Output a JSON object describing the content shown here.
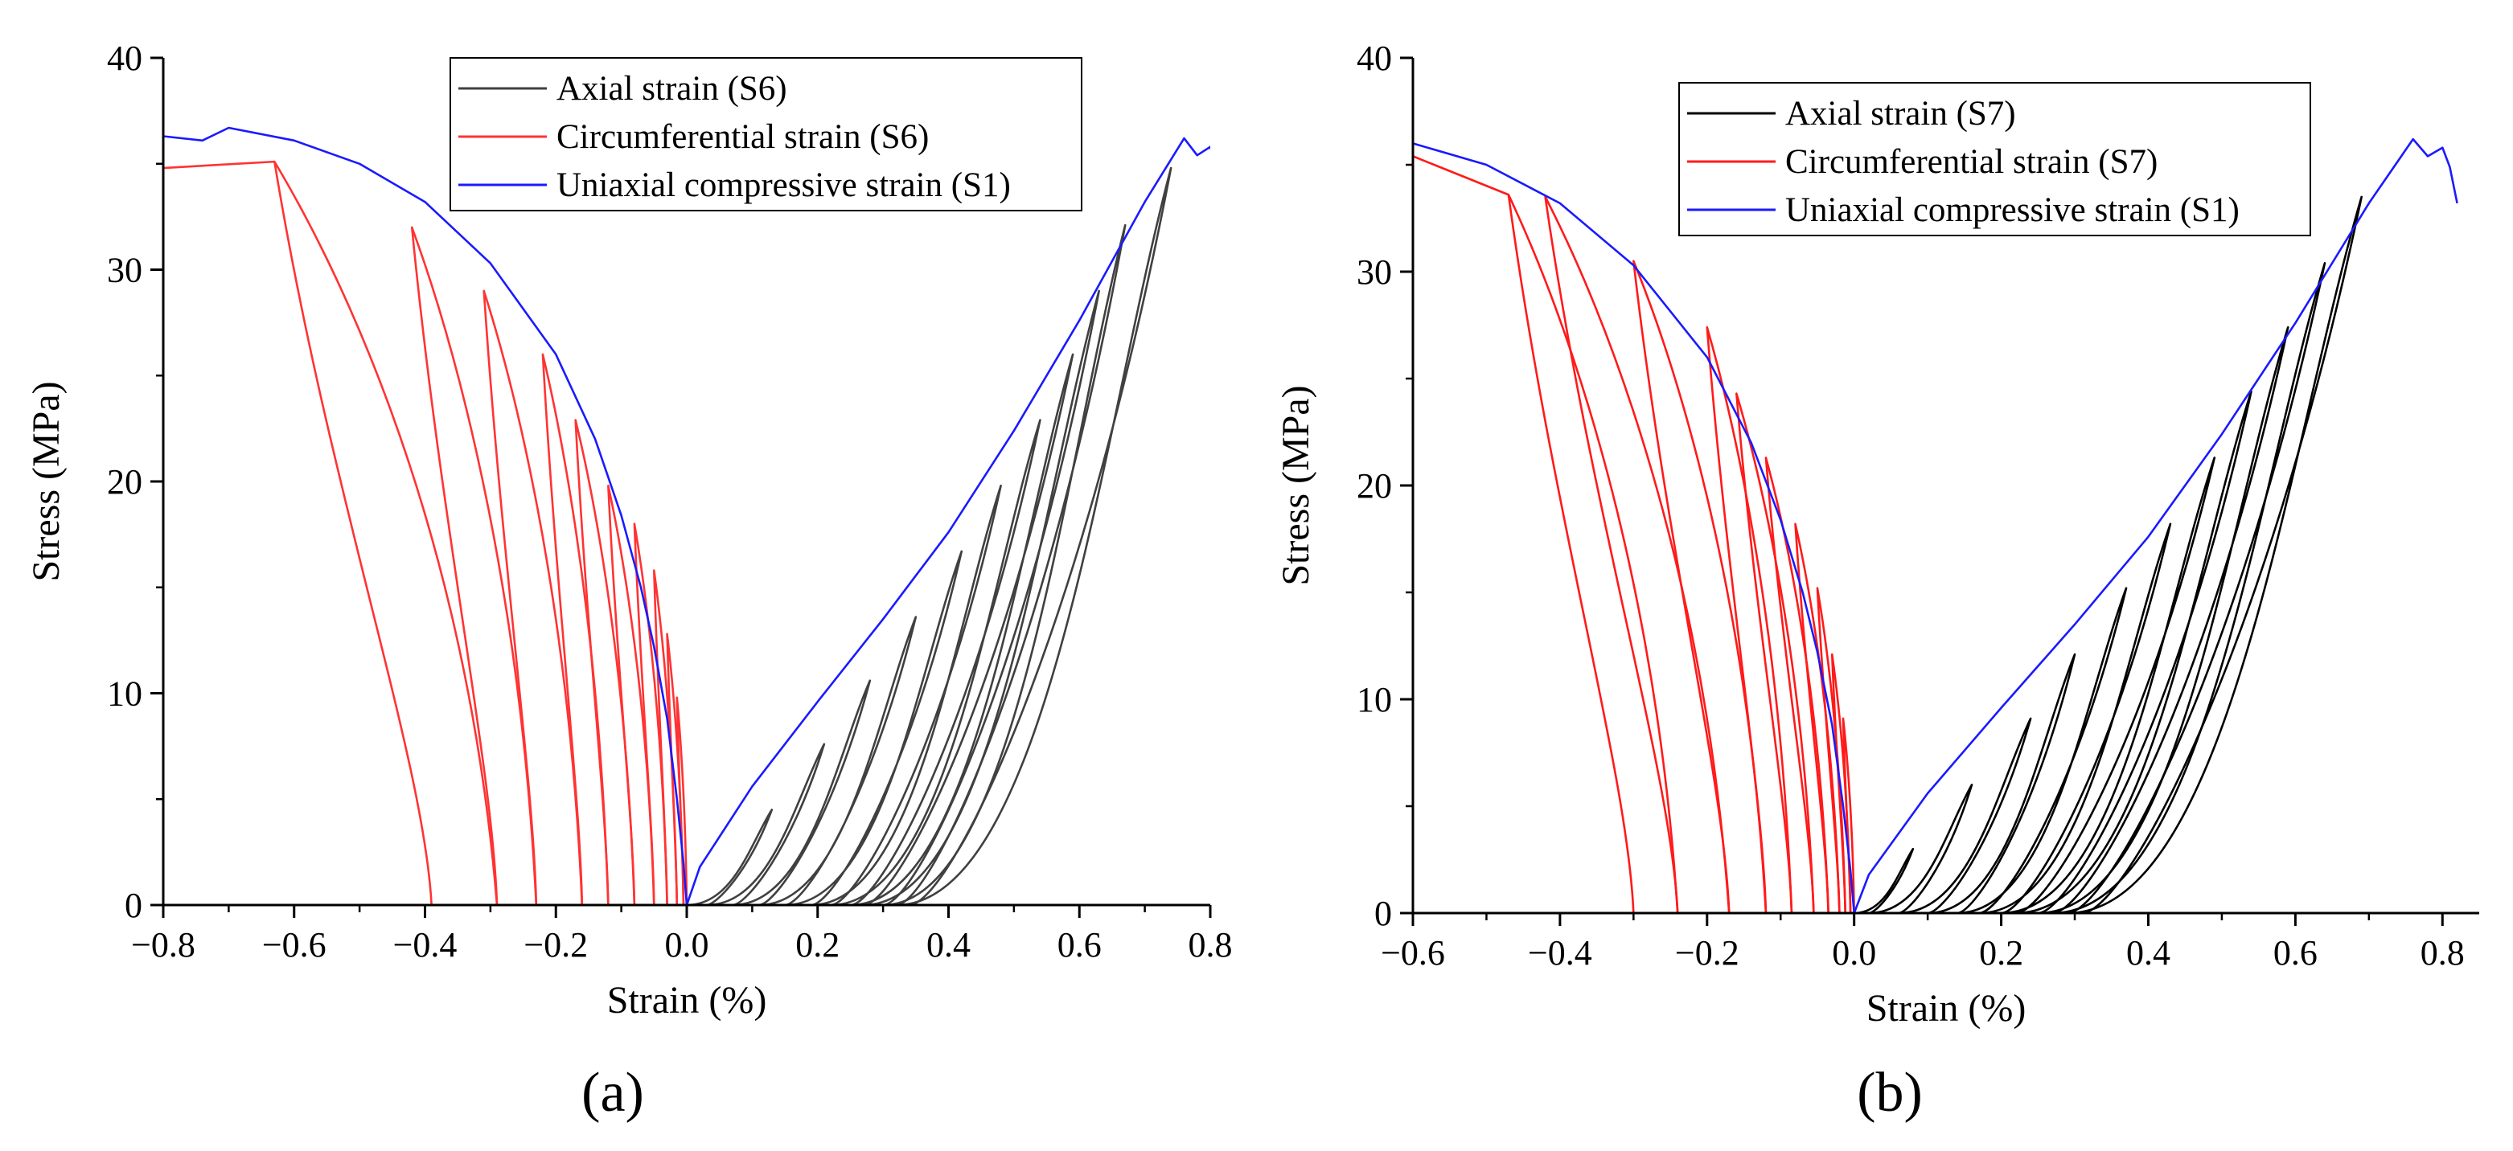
{
  "figure": {
    "panels": [
      "(a)",
      "(b)"
    ]
  },
  "chart_data": [
    {
      "panel": "(a)",
      "type": "line",
      "xlabel": "Strain (%)",
      "ylabel": "Stress (MPa)",
      "xlim": [
        -0.8,
        0.8
      ],
      "ylim": [
        0,
        40
      ],
      "xticks": [
        -0.8,
        -0.6,
        -0.4,
        -0.2,
        0.0,
        0.2,
        0.4,
        0.6,
        0.8
      ],
      "xtick_labels": [
        "−0.8",
        "−0.6",
        "−0.4",
        "−0.2",
        "0.0",
        "0.2",
        "0.4",
        "0.6",
        "0.8"
      ],
      "yticks": [
        0,
        10,
        20,
        30,
        40
      ],
      "ytick_labels": [
        "0",
        "10",
        "20",
        "30",
        "40"
      ],
      "legend_position": "top-right",
      "series": [
        {
          "name": "Axial strain (S6)",
          "color": "#404040",
          "kind": "axial-cycles",
          "loops": [
            {
              "peak": 4.5,
              "x_peak": 0.13,
              "x_residual": 0.03
            },
            {
              "peak": 7.6,
              "x_peak": 0.21,
              "x_residual": 0.07
            },
            {
              "peak": 10.6,
              "x_peak": 0.28,
              "x_residual": 0.11
            },
            {
              "peak": 13.6,
              "x_peak": 0.35,
              "x_residual": 0.15
            },
            {
              "peak": 16.7,
              "x_peak": 0.42,
              "x_residual": 0.19
            },
            {
              "peak": 19.8,
              "x_peak": 0.48,
              "x_residual": 0.22
            },
            {
              "peak": 22.9,
              "x_peak": 0.54,
              "x_residual": 0.25
            },
            {
              "peak": 26.0,
              "x_peak": 0.59,
              "x_residual": 0.27
            },
            {
              "peak": 29.0,
              "x_peak": 0.63,
              "x_residual": 0.3
            },
            {
              "peak": 32.1,
              "x_peak": 0.67,
              "x_residual": 0.32
            },
            {
              "peak": 34.8,
              "x_peak": 0.74,
              "x_residual": 0.34
            }
          ]
        },
        {
          "name": "Circumferential strain  (S6)",
          "color": "#ff3333",
          "kind": "circ-cycles",
          "loops": [
            {
              "peak": 9.8,
              "x_peak": -0.015,
              "x_residual": -0.005
            },
            {
              "peak": 12.8,
              "x_peak": -0.03,
              "x_residual": -0.015
            },
            {
              "peak": 15.8,
              "x_peak": -0.05,
              "x_residual": -0.03
            },
            {
              "peak": 18.0,
              "x_peak": -0.08,
              "x_residual": -0.05
            },
            {
              "peak": 19.8,
              "x_peak": -0.12,
              "x_residual": -0.08
            },
            {
              "peak": 22.9,
              "x_peak": -0.17,
              "x_residual": -0.12
            },
            {
              "peak": 26.0,
              "x_peak": -0.22,
              "x_residual": -0.16
            },
            {
              "peak": 29.0,
              "x_peak": -0.31,
              "x_residual": -0.23
            },
            {
              "peak": 32.0,
              "x_peak": -0.42,
              "x_residual": -0.29
            },
            {
              "peak": 35.1,
              "x_peak": -0.63,
              "x_residual": -0.39
            }
          ],
          "final": [
            [
              -0.63,
              35.1
            ],
            [
              -0.8,
              34.8
            ]
          ]
        },
        {
          "name": "Uniaxial compressive strain (S1)",
          "color": "#1a1aff",
          "kind": "envelope",
          "points": [
            [
              -0.8,
              36.3
            ],
            [
              -0.74,
              36.1
            ],
            [
              -0.7,
              36.7
            ],
            [
              -0.6,
              36.1
            ],
            [
              -0.5,
              35.0
            ],
            [
              -0.4,
              33.2
            ],
            [
              -0.3,
              30.3
            ],
            [
              -0.2,
              26.0
            ],
            [
              -0.14,
              22.0
            ],
            [
              -0.1,
              18.4
            ],
            [
              -0.07,
              15.0
            ],
            [
              -0.05,
              12.2
            ],
            [
              -0.03,
              8.8
            ],
            [
              -0.015,
              5.0
            ],
            [
              -0.005,
              2.0
            ],
            [
              0.0,
              0.0
            ],
            [
              0.02,
              1.8
            ],
            [
              0.1,
              5.6
            ],
            [
              0.2,
              9.6
            ],
            [
              0.3,
              13.5
            ],
            [
              0.4,
              17.6
            ],
            [
              0.5,
              22.4
            ],
            [
              0.6,
              27.6
            ],
            [
              0.7,
              33.2
            ],
            [
              0.76,
              36.2
            ],
            [
              0.78,
              35.4
            ],
            [
              0.8,
              35.8
            ],
            [
              0.81,
              34.9
            ],
            [
              0.82,
              33.2
            ]
          ]
        }
      ]
    },
    {
      "panel": "(b)",
      "type": "line",
      "xlabel": "Strain (%)",
      "ylabel": "Stress (MPa)",
      "xlim": [
        -0.6,
        0.85
      ],
      "ylim": [
        0,
        40
      ],
      "xticks": [
        -0.6,
        -0.4,
        -0.2,
        0.0,
        0.2,
        0.4,
        0.6,
        0.8
      ],
      "xtick_labels": [
        "−0.6",
        "−0.4",
        "−0.2",
        "0.0",
        "0.2",
        "0.4",
        "0.6",
        "0.8"
      ],
      "yticks": [
        0,
        10,
        20,
        30,
        40
      ],
      "ytick_labels": [
        "0",
        "10",
        "20",
        "30",
        "40"
      ],
      "legend_position": "top-right",
      "series": [
        {
          "name": "Axial strain (S7)",
          "color": "#000000",
          "kind": "axial-cycles",
          "loops": [
            {
              "peak": 3.0,
              "x_peak": 0.08,
              "x_residual": 0.02
            },
            {
              "peak": 6.0,
              "x_peak": 0.16,
              "x_residual": 0.06
            },
            {
              "peak": 9.1,
              "x_peak": 0.24,
              "x_residual": 0.1
            },
            {
              "peak": 12.1,
              "x_peak": 0.3,
              "x_residual": 0.14
            },
            {
              "peak": 15.2,
              "x_peak": 0.37,
              "x_residual": 0.17
            },
            {
              "peak": 18.2,
              "x_peak": 0.43,
              "x_residual": 0.2
            },
            {
              "peak": 21.3,
              "x_peak": 0.49,
              "x_residual": 0.22
            },
            {
              "peak": 24.4,
              "x_peak": 0.54,
              "x_residual": 0.25
            },
            {
              "peak": 27.4,
              "x_peak": 0.59,
              "x_residual": 0.27
            },
            {
              "peak": 30.4,
              "x_peak": 0.64,
              "x_residual": 0.29
            },
            {
              "peak": 33.5,
              "x_peak": 0.69,
              "x_residual": 0.31
            }
          ]
        },
        {
          "name": "Circumferential strain  (S7)",
          "color": "#ff1a1a",
          "kind": "circ-cycles",
          "loops": [
            {
              "peak": 9.1,
              "x_peak": -0.015,
              "x_residual": -0.005
            },
            {
              "peak": 12.1,
              "x_peak": -0.03,
              "x_residual": -0.012
            },
            {
              "peak": 15.2,
              "x_peak": -0.05,
              "x_residual": -0.02
            },
            {
              "peak": 18.2,
              "x_peak": -0.08,
              "x_residual": -0.035
            },
            {
              "peak": 21.3,
              "x_peak": -0.12,
              "x_residual": -0.055
            },
            {
              "peak": 24.3,
              "x_peak": -0.16,
              "x_residual": -0.085
            },
            {
              "peak": 27.4,
              "x_peak": -0.2,
              "x_residual": -0.12
            },
            {
              "peak": 30.5,
              "x_peak": -0.3,
              "x_residual": -0.17
            },
            {
              "peak": 33.5,
              "x_peak": -0.42,
              "x_residual": -0.24
            },
            {
              "peak": 33.6,
              "x_peak": -0.47,
              "x_residual": -0.3
            }
          ],
          "final": [
            [
              -0.47,
              33.6
            ],
            [
              -0.6,
              35.4
            ]
          ]
        },
        {
          "name": "Uniaxial compressive strain (S1)",
          "color": "#1a1aff",
          "kind": "envelope",
          "points": [
            [
              -0.6,
              36.0
            ],
            [
              -0.5,
              35.0
            ],
            [
              -0.4,
              33.2
            ],
            [
              -0.3,
              30.3
            ],
            [
              -0.2,
              26.0
            ],
            [
              -0.14,
              22.0
            ],
            [
              -0.1,
              18.4
            ],
            [
              -0.07,
              15.0
            ],
            [
              -0.05,
              12.2
            ],
            [
              -0.03,
              8.8
            ],
            [
              -0.015,
              5.0
            ],
            [
              -0.005,
              2.0
            ],
            [
              0.0,
              0.0
            ],
            [
              0.02,
              1.8
            ],
            [
              0.1,
              5.6
            ],
            [
              0.2,
              9.6
            ],
            [
              0.3,
              13.5
            ],
            [
              0.4,
              17.6
            ],
            [
              0.5,
              22.4
            ],
            [
              0.6,
              27.6
            ],
            [
              0.7,
              33.2
            ],
            [
              0.76,
              36.2
            ],
            [
              0.78,
              35.4
            ],
            [
              0.8,
              35.8
            ],
            [
              0.81,
              34.9
            ],
            [
              0.82,
              33.2
            ]
          ]
        }
      ]
    }
  ]
}
